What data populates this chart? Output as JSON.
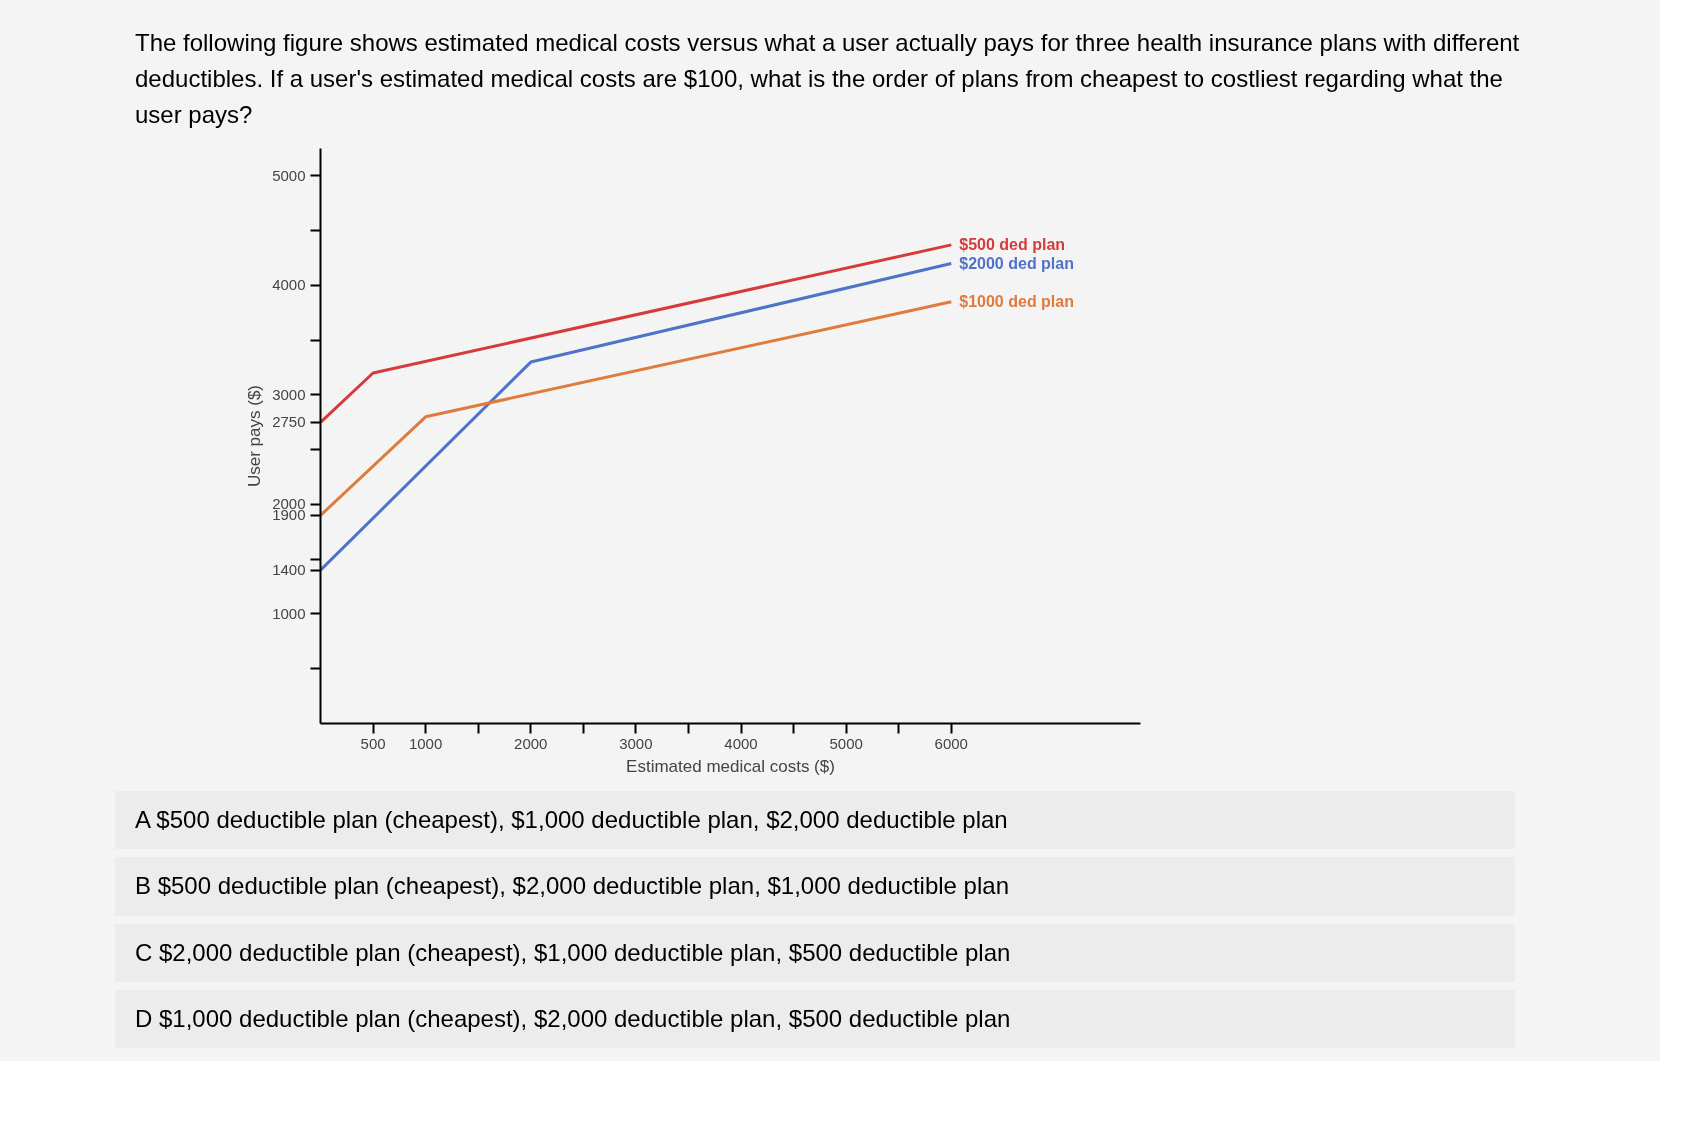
{
  "chart_data": {
    "type": "line",
    "title": "The following figure shows estimated medical costs versus what a user actually pays for three health insurance plans with different deductibles. If a user's estimated medical costs are $100, what is the order of plans from cheapest to costliest regarding what the user pays?",
    "xlabel": "Estimated medical costs ($)",
    "ylabel": "User pays ($)",
    "series": [
      {
        "name": "$500 ded plan",
        "color": "#d63b3b",
        "x": [
          0,
          500,
          6000
        ],
        "values": [
          2750,
          3200,
          4370
        ]
      },
      {
        "name": "$2000 ded plan",
        "color": "#4f73c8",
        "x": [
          0,
          2000,
          6000
        ],
        "values": [
          1400,
          3300,
          4200
        ]
      },
      {
        "name": "$1000 ded plan",
        "color": "#e07b3e",
        "x": [
          0,
          1000,
          6000
        ],
        "values": [
          1900,
          2800,
          3850
        ]
      }
    ],
    "xlim": [
      0,
      7800
    ],
    "ylim": [
      0,
      5250
    ],
    "xticks": [
      500,
      1000,
      {
        "value": 1500,
        "label": null
      },
      2000,
      {
        "value": 2500,
        "label": null
      },
      3000,
      {
        "value": 3500,
        "label": null
      },
      4000,
      {
        "value": 4500,
        "label": null
      },
      5000,
      {
        "value": 5500,
        "label": null
      },
      6000
    ],
    "yticks": [
      {
        "value": 500,
        "label": null
      },
      1000,
      1400,
      {
        "value": 1500,
        "label": null
      },
      1900,
      2000,
      {
        "value": 2500,
        "label": null
      },
      2750,
      3000,
      {
        "value": 3500,
        "label": null
      },
      4000,
      {
        "value": 4500,
        "label": null
      },
      5000
    ],
    "grid": false,
    "line_style": "solid",
    "annotations": [
      "A $500 deductible plan (cheapest), $1,000 deductible plan, $2,000 deductible plan",
      "B $500 deductible plan (cheapest), $2,000 deductible plan, $1,000 deductible plan",
      "C $2,000 deductible plan (cheapest), $1,000 deductible plan, $500 deductible plan",
      "D $1,000 deductible plan (cheapest), $2,000 deductible plan, $500 deductible plan"
    ]
  }
}
